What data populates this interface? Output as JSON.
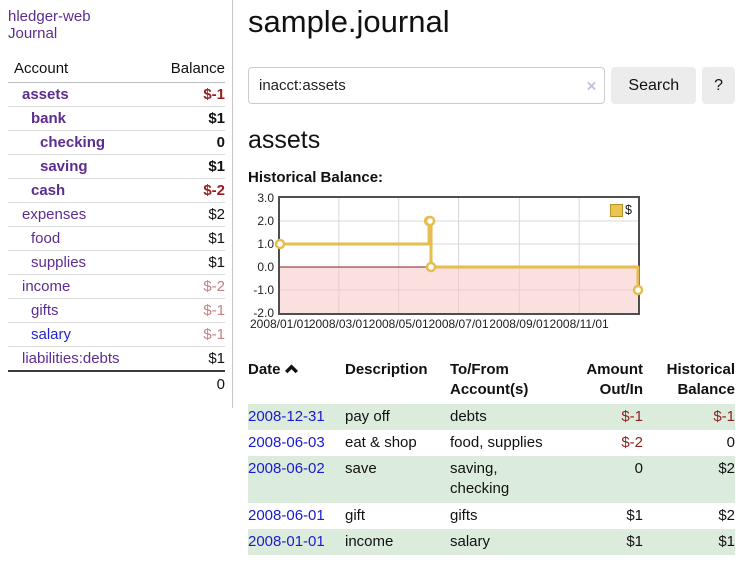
{
  "sidebar": {
    "brand": "hledger-web",
    "journal_label": "Journal",
    "accounts": {
      "header_account": "Account",
      "header_balance": "Balance",
      "rows": [
        {
          "name": "assets",
          "indent": 1,
          "bold": true,
          "balance": "$-1",
          "balance_style": "neg-strong"
        },
        {
          "name": "bank",
          "indent": 2,
          "bold": true,
          "balance": "$1",
          "balance_style": "pos"
        },
        {
          "name": "checking",
          "indent": 3,
          "bold": true,
          "balance": "0",
          "balance_style": "pos"
        },
        {
          "name": "saving",
          "indent": 3,
          "bold": true,
          "balance": "$1",
          "balance_style": "pos"
        },
        {
          "name": "cash",
          "indent": 2,
          "bold": true,
          "balance": "$-2",
          "balance_style": "neg-strong"
        },
        {
          "name": "expenses",
          "indent": 1,
          "bold": false,
          "balance": "$2",
          "balance_style": "pos"
        },
        {
          "name": "food",
          "indent": 2,
          "bold": false,
          "balance": "$1",
          "balance_style": "pos"
        },
        {
          "name": "supplies",
          "indent": 2,
          "bold": false,
          "balance": "$1",
          "balance_style": "pos"
        },
        {
          "name": "income",
          "indent": 1,
          "bold": false,
          "balance": "$-2",
          "balance_style": "neg-muted"
        },
        {
          "name": "gifts",
          "indent": 2,
          "bold": false,
          "balance": "$-1",
          "balance_style": "neg-muted"
        },
        {
          "name": "salary",
          "indent": 2,
          "bold": false,
          "balance": "$-1",
          "balance_style": "neg-muted",
          "link_color": "blue"
        },
        {
          "name": "liabilities:debts",
          "indent": 1,
          "bold": false,
          "balance": "$1",
          "balance_style": "pos"
        }
      ],
      "total": "0"
    }
  },
  "main": {
    "title": "sample.journal",
    "search": {
      "value": "inacct:assets",
      "clear_icon": "×",
      "button_label": "Search",
      "help_label": "?"
    },
    "account_heading": "assets",
    "chart_label": "Historical Balance:"
  },
  "chart_data": {
    "type": "line",
    "title": "Historical Balance:",
    "interpolation": "step-after",
    "series": [
      {
        "name": "$",
        "color": "#e6bd4f",
        "points": [
          {
            "date": "2008-01-01",
            "value": 1
          },
          {
            "date": "2008-06-01",
            "value": 2
          },
          {
            "date": "2008-06-02",
            "value": 2
          },
          {
            "date": "2008-06-03",
            "value": 0
          },
          {
            "date": "2008-12-31",
            "value": -1
          }
        ]
      }
    ],
    "x_range": [
      "2008-01-01",
      "2008-12-31"
    ],
    "x_ticks": [
      "2008/01/01",
      "2008/03/01",
      "2008/05/01",
      "2008/07/01",
      "2008/09/01",
      "2008/11/01"
    ],
    "y_ticks": [
      3.0,
      2.0,
      1.0,
      0.0,
      -1.0,
      -2.0
    ],
    "ylim": [
      -2,
      3
    ],
    "grid": true,
    "negative_region_color": "#f7c6c6",
    "zero_line_color": "#8f1d1d",
    "legend": {
      "label": "$",
      "position": "top-right",
      "swatch_color": "#eac54f"
    }
  },
  "register": {
    "columns": {
      "date": "Date",
      "sort_icon": "chevron-up",
      "description": "Description",
      "tofrom_line1": "To/From",
      "tofrom_line2": "Account(s)",
      "amount_line1": "Amount",
      "amount_line2": "Out/In",
      "historical_line1": "Historical",
      "historical_line2": "Balance"
    },
    "rows": [
      {
        "date": "2008-12-31",
        "description": "pay off",
        "accounts": "debts",
        "amount": "$-1",
        "amount_neg": true,
        "balance": "$-1",
        "balance_neg": true
      },
      {
        "date": "2008-06-03",
        "description": "eat & shop",
        "accounts": "food, supplies",
        "amount": "$-2",
        "amount_neg": true,
        "balance": "0",
        "balance_neg": false
      },
      {
        "date": "2008-06-02",
        "description": "save",
        "accounts": "saving, checking",
        "amount": "0",
        "amount_neg": false,
        "balance": "$2",
        "balance_neg": false
      },
      {
        "date": "2008-06-01",
        "description": "gift",
        "accounts": "gifts",
        "amount": "$1",
        "amount_neg": false,
        "balance": "$2",
        "balance_neg": false
      },
      {
        "date": "2008-01-01",
        "description": "income",
        "accounts": "salary",
        "amount": "$1",
        "amount_neg": false,
        "balance": "$1",
        "balance_neg": false
      }
    ]
  }
}
